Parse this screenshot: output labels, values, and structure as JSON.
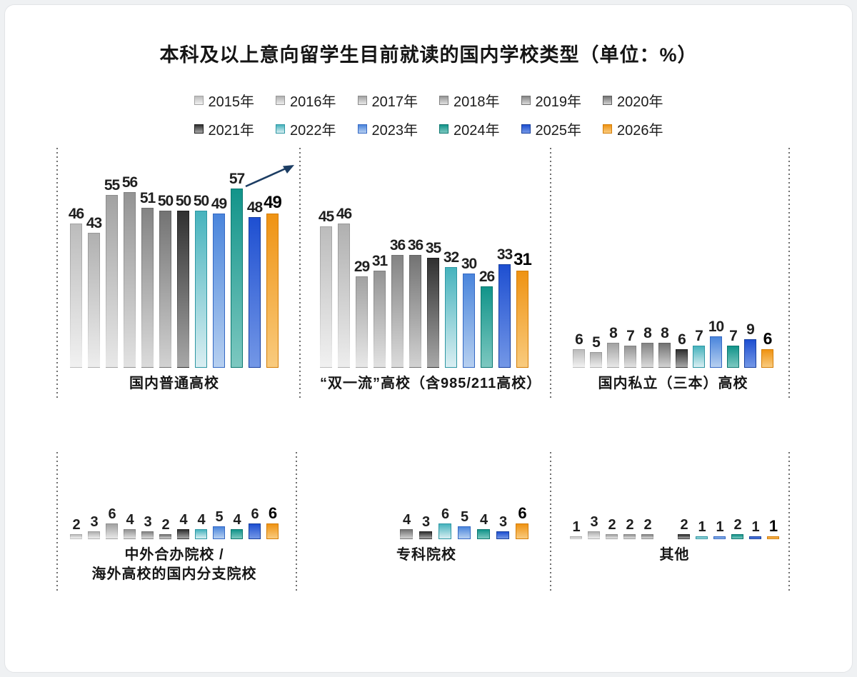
{
  "title": "本科及以上意向留学生目前就读的国内学校类型（单位：%）",
  "legend": {
    "items": [
      {
        "label": "2015年",
        "top": "#bcbcbc",
        "bottom": "#f1f1f1",
        "border": "#a2a2a2",
        "fade": true
      },
      {
        "label": "2016年",
        "top": "#b0b0b0",
        "bottom": "#ededed",
        "border": "#989898",
        "fade": true
      },
      {
        "label": "2017年",
        "top": "#a2a2a2",
        "bottom": "#e8e8e8",
        "border": "#8c8c8c",
        "fade": true
      },
      {
        "label": "2018年",
        "top": "#949494",
        "bottom": "#e2e2e2",
        "border": "#808080",
        "fade": true
      },
      {
        "label": "2019年",
        "top": "#848484",
        "bottom": "#dbdbdb",
        "border": "#727272",
        "fade": true
      },
      {
        "label": "2020年",
        "top": "#737373",
        "bottom": "#d2d2d2",
        "border": "#616161",
        "fade": true
      },
      {
        "label": "2021年",
        "top": "#303030",
        "bottom": "#a8a8a8",
        "border": "#1e1e1e",
        "fade": true
      },
      {
        "label": "2022年",
        "top": "#46b3bd",
        "bottom": "#d9eef2",
        "border": "#2e97a3",
        "fade": false
      },
      {
        "label": "2023年",
        "top": "#4a85dc",
        "bottom": "#b6cff0",
        "border": "#3569c4",
        "fade": false
      },
      {
        "label": "2024年",
        "top": "#12948a",
        "bottom": "#7cc8c0",
        "border": "#0b776f",
        "fade": false
      },
      {
        "label": "2025年",
        "top": "#1e4fd1",
        "bottom": "#7397e6",
        "border": "#173f9e",
        "fade": false
      },
      {
        "label": "2026年",
        "top": "#ef9313",
        "bottom": "#f9cb7e",
        "border": "#d47d06",
        "fade": false
      }
    ]
  },
  "chart_data": {
    "type": "bar",
    "unit": "%",
    "title": "本科及以上意向留学生目前就读的国内学校类型（单位：%）",
    "axes": "none",
    "legend_position": "top",
    "years": [
      "2015年",
      "2016年",
      "2017年",
      "2018年",
      "2019年",
      "2020年",
      "2021年",
      "2022年",
      "2023年",
      "2024年",
      "2025年",
      "2026年"
    ],
    "groups": [
      {
        "name": "domestic-regular",
        "caption_lines": [
          "国内普通高校"
        ],
        "categories": [
          "2015年",
          "2016年",
          "2017年",
          "2018年",
          "2019年",
          "2020年",
          "2021年",
          "2022年",
          "2023年",
          "2024年",
          "2025年",
          "2026年"
        ],
        "values": [
          46,
          43,
          55,
          56,
          51,
          50,
          50,
          50,
          49,
          57,
          48,
          49
        ],
        "annotation": "trend-arrow-up"
      },
      {
        "name": "double-first-class",
        "caption_lines": [
          "“双一流”高校（含985/211高校）"
        ],
        "categories": [
          "2015年",
          "2016年",
          "2017年",
          "2018年",
          "2019年",
          "2020年",
          "2021年",
          "2022年",
          "2023年",
          "2024年",
          "2025年",
          "2026年"
        ],
        "values": [
          45,
          46,
          29,
          31,
          36,
          36,
          35,
          32,
          30,
          26,
          33,
          31
        ]
      },
      {
        "name": "private-sanben",
        "caption_lines": [
          "国内私立（三本）高校"
        ],
        "categories": [
          "2015年",
          "2016年",
          "2017年",
          "2018年",
          "2019年",
          "2020年",
          "2021年",
          "2022年",
          "2023年",
          "2024年",
          "2025年",
          "2026年"
        ],
        "values": [
          6,
          5,
          8,
          7,
          8,
          8,
          6,
          7,
          10,
          7,
          9,
          6
        ]
      },
      {
        "name": "sino-foreign",
        "caption_lines": [
          "中外合办院校 /",
          "海外高校的国内分支院校"
        ],
        "categories": [
          "2015年",
          "2016年",
          "2017年",
          "2018年",
          "2019年",
          "2020年",
          "2021年",
          "2022年",
          "2023年",
          "2024年",
          "2025年",
          "2026年"
        ],
        "values": [
          2,
          3,
          6,
          4,
          3,
          2,
          4,
          4,
          5,
          4,
          6,
          6
        ]
      },
      {
        "name": "vocational",
        "caption_lines": [
          "专科院校"
        ],
        "categories": [
          "2020年",
          "2021年",
          "2022年",
          "2023年",
          "2024年",
          "2025年",
          "2026年"
        ],
        "values": [
          4,
          3,
          6,
          5,
          4,
          3,
          6
        ]
      },
      {
        "name": "other",
        "caption_lines": [
          "其他"
        ],
        "categories": [
          "2015年",
          "2016年",
          "2017年",
          "2018年",
          "2019年",
          "2021年",
          "2022年",
          "2023年",
          "2024年",
          "2025年",
          "2026年"
        ],
        "values": [
          1,
          3,
          2,
          2,
          2,
          2,
          1,
          1,
          2,
          1,
          1
        ]
      }
    ]
  }
}
